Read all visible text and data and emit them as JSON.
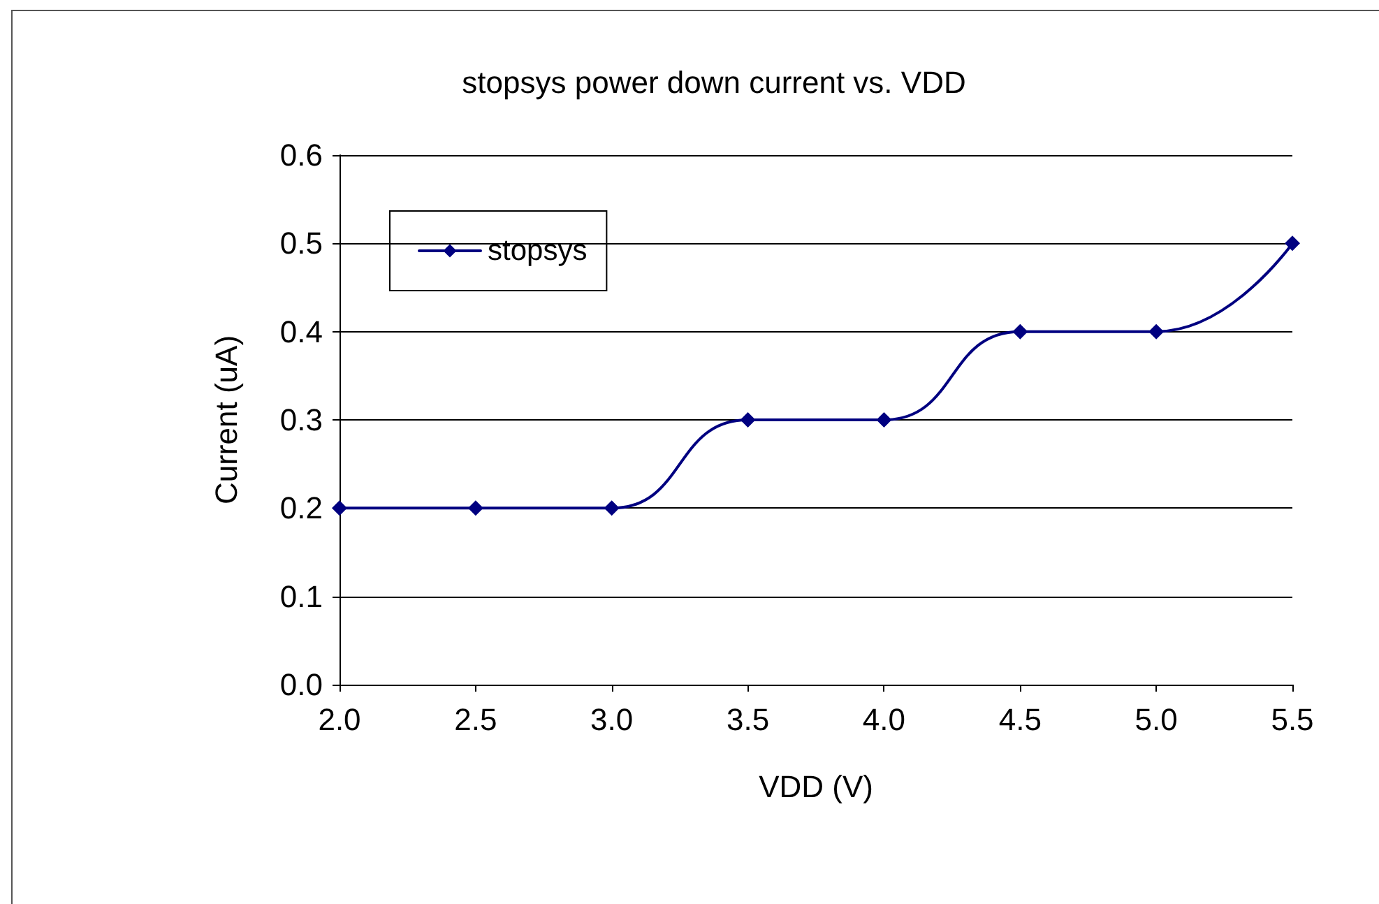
{
  "chart_data": {
    "type": "line",
    "title": "stopsys power down current vs. VDD",
    "xlabel": "VDD (V)",
    "ylabel": "Current (uA)",
    "x": [
      2.0,
      2.5,
      3.0,
      3.5,
      4.0,
      4.5,
      5.0,
      5.5
    ],
    "series": [
      {
        "name": "stopsys",
        "color": "#000080",
        "values": [
          0.2,
          0.2,
          0.2,
          0.3,
          0.3,
          0.4,
          0.4,
          0.5
        ]
      }
    ],
    "xlim": [
      2.0,
      5.5
    ],
    "xticks": [
      {
        "value": 2,
        "label": "2.0"
      },
      {
        "value": 2.5,
        "label": "2.5"
      },
      {
        "value": 3,
        "label": "3.0"
      },
      {
        "value": 3.5,
        "label": "3.5"
      },
      {
        "value": 4,
        "label": "4.0"
      },
      {
        "value": 4.5,
        "label": "4.5"
      },
      {
        "value": 5,
        "label": "5.0"
      },
      {
        "value": 5.5,
        "label": "5.5"
      }
    ],
    "ylim": [
      0,
      0.6
    ],
    "yticks": [
      {
        "value": 0,
        "label": "0.0"
      },
      0.1,
      0.2,
      0.3,
      0.4,
      0.5,
      0.6
    ],
    "grid": "y",
    "legend": "top left",
    "marker": "diamond",
    "line_style": "solid"
  }
}
